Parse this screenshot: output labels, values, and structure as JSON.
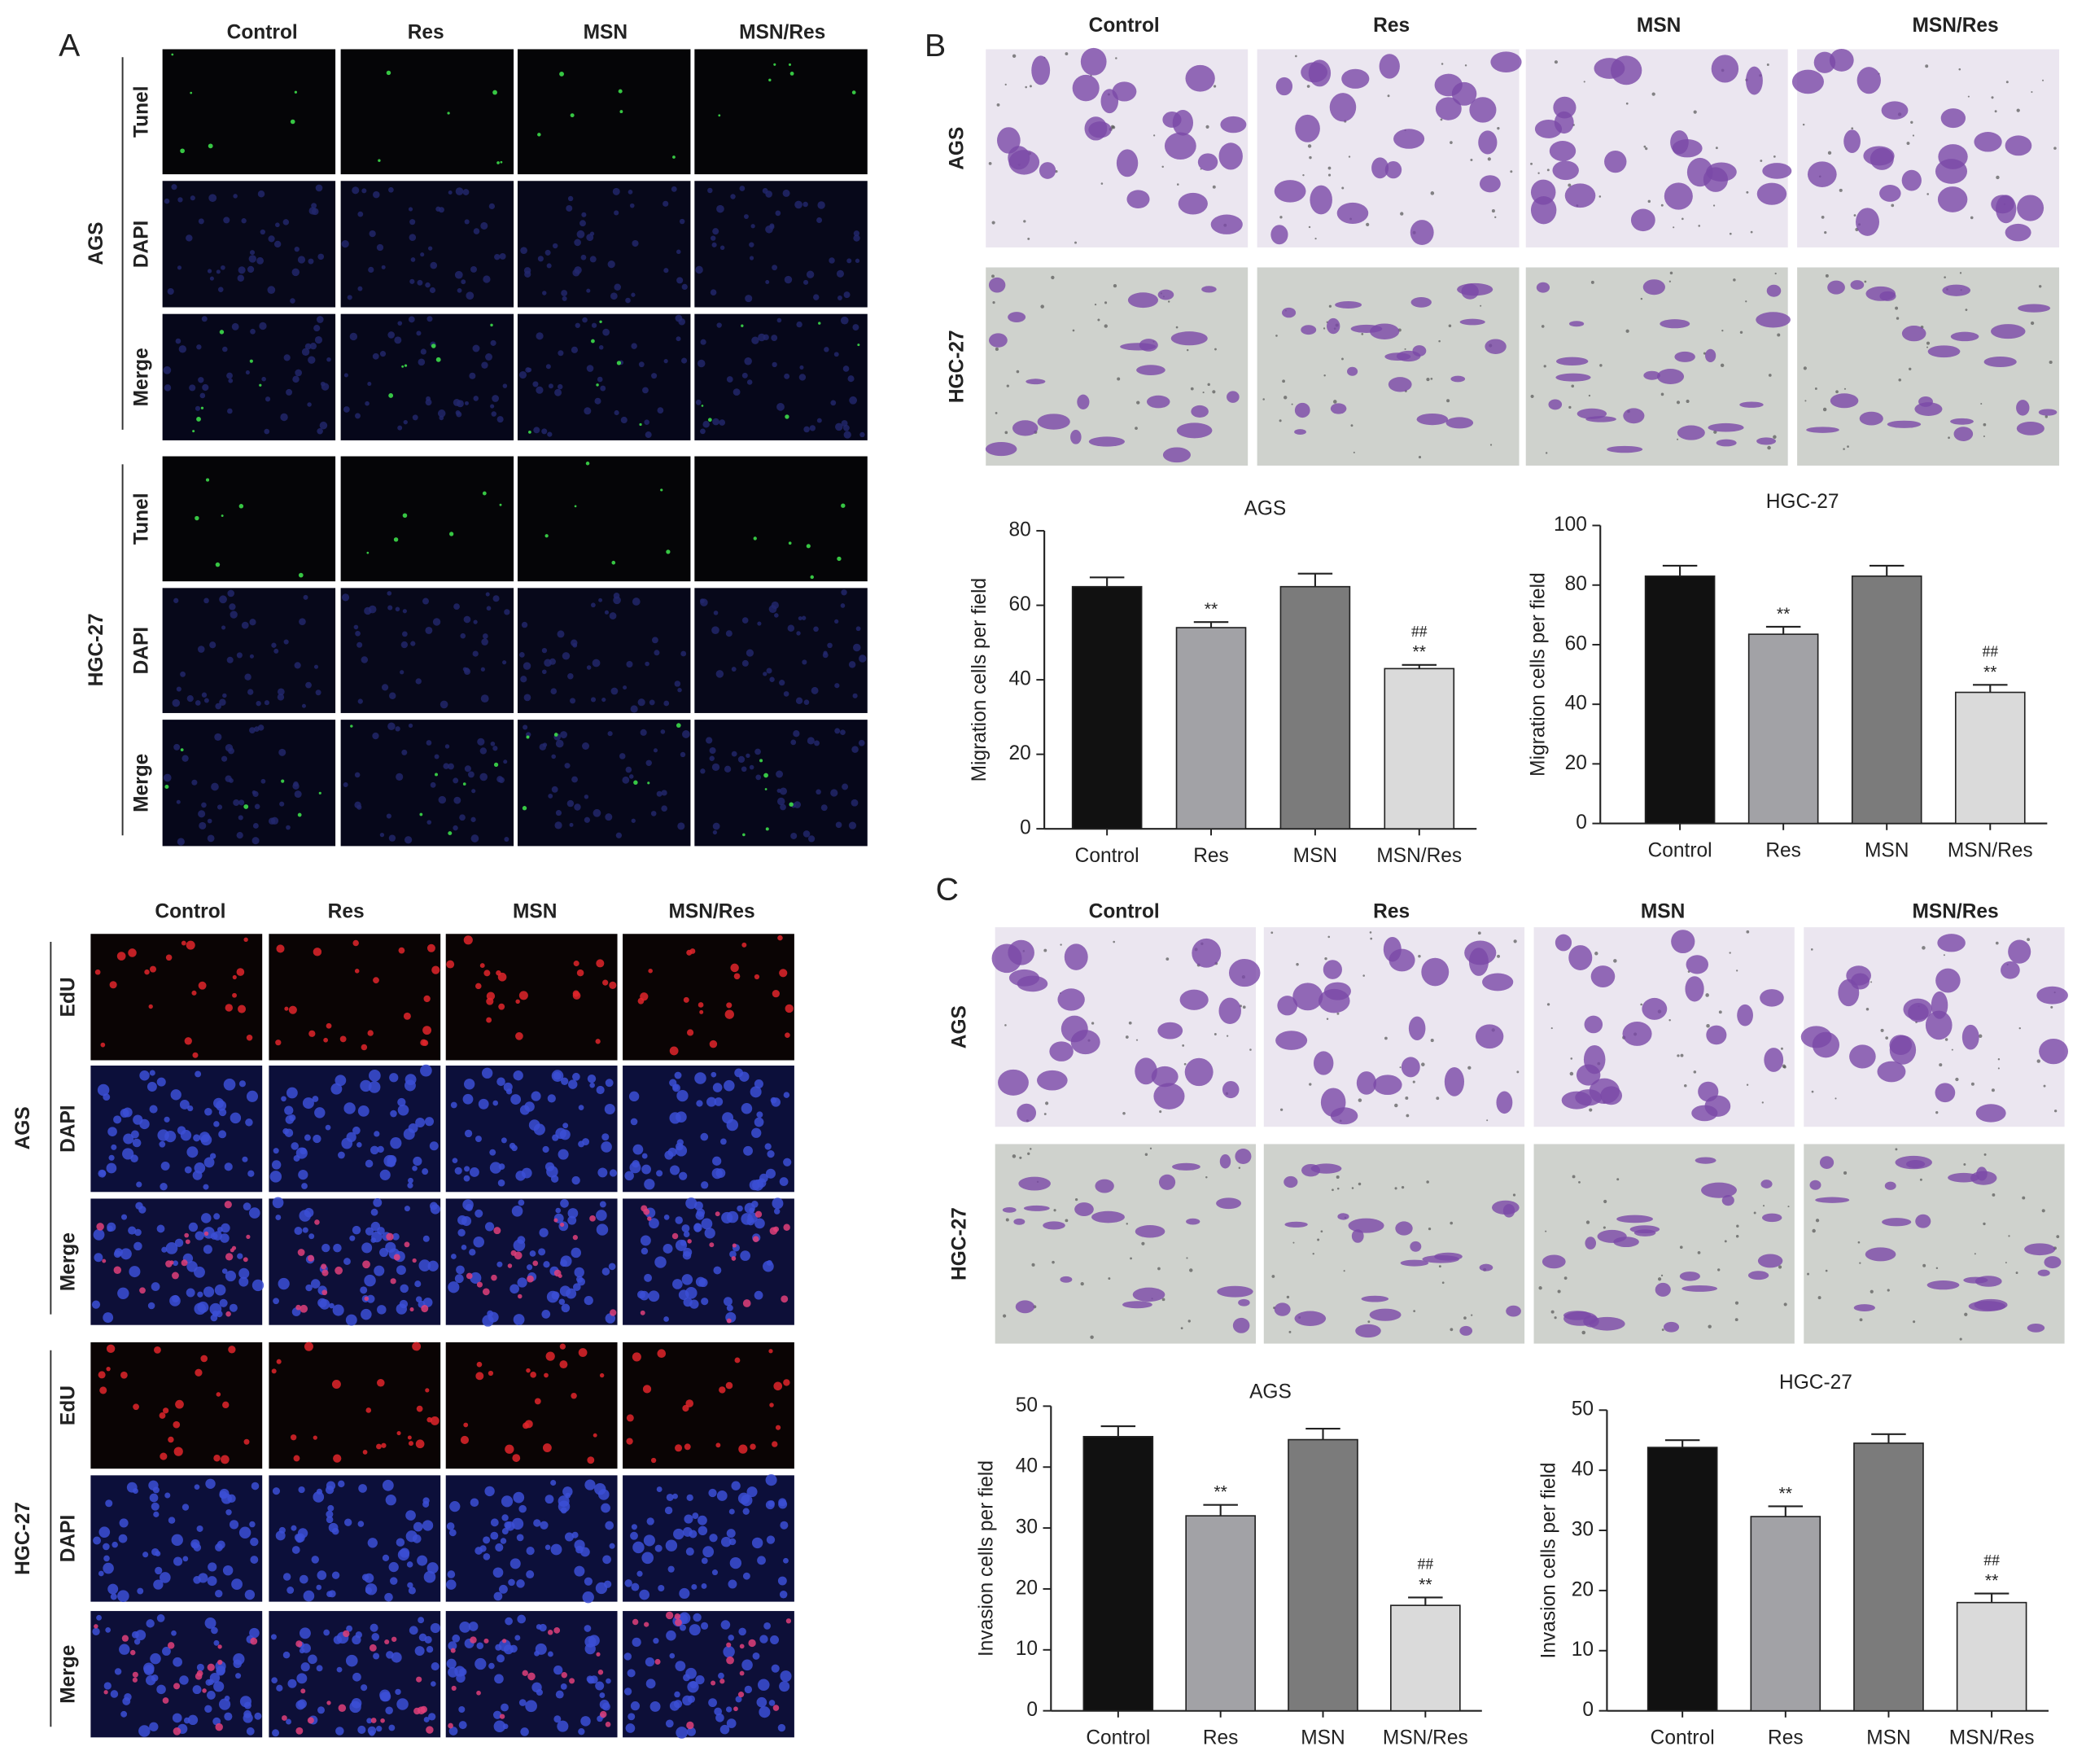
{
  "figure": {
    "panel_a": {
      "letter": "A",
      "columns": [
        "Control",
        "Res",
        "MSN",
        "MSN/Res"
      ],
      "cell_lines": [
        "AGS",
        "HGC-27"
      ],
      "stains": [
        "Tunel",
        "DAPI",
        "Merge"
      ]
    },
    "panel_edu": {
      "columns": [
        "Control",
        "Res",
        "MSN",
        "MSN/Res"
      ],
      "cell_lines": [
        "AGS",
        "HGC-27"
      ],
      "stains": [
        "EdU",
        "DAPI",
        "Merge"
      ]
    },
    "panel_b": {
      "letter": "B",
      "columns": [
        "Control",
        "Res",
        "MSN",
        "MSN/Res"
      ],
      "cell_lines": [
        "AGS",
        "HGC-27"
      ]
    },
    "panel_c": {
      "letter": "C",
      "columns": [
        "Control",
        "Res",
        "MSN",
        "MSN/Res"
      ],
      "cell_lines": [
        "AGS",
        "HGC-27"
      ]
    }
  },
  "chart_data": [
    {
      "type": "bar",
      "title": "AGS",
      "ylabel": "Migration cells per field",
      "categories": [
        "Control",
        "Res",
        "MSN",
        "MSN/Res"
      ],
      "values": [
        65,
        54,
        65,
        43
      ],
      "errors": [
        2.5,
        1.5,
        3.5,
        1
      ],
      "colors": [
        "#111111",
        "#a2a2a6",
        "#7b7b7b",
        "#dadada"
      ],
      "stars": [
        null,
        "**",
        null,
        "**"
      ],
      "hashes": [
        null,
        null,
        null,
        "##"
      ],
      "ylim": [
        0,
        80
      ],
      "yticks": [
        0,
        20,
        40,
        60,
        80
      ]
    },
    {
      "type": "bar",
      "title": "HGC-27",
      "ylabel": "Migration cells per field",
      "categories": [
        "Control",
        "Res",
        "MSN",
        "MSN/Res"
      ],
      "values": [
        83,
        63.5,
        83,
        44
      ],
      "errors": [
        3.5,
        2.5,
        3.5,
        2.5
      ],
      "colors": [
        "#111111",
        "#a2a2a6",
        "#7b7b7b",
        "#dadada"
      ],
      "stars": [
        null,
        "**",
        null,
        "**"
      ],
      "hashes": [
        null,
        null,
        null,
        "##"
      ],
      "ylim": [
        0,
        100
      ],
      "yticks": [
        0,
        20,
        40,
        60,
        80,
        100
      ]
    },
    {
      "type": "bar",
      "title": "AGS",
      "ylabel": "Invasion cells per field",
      "categories": [
        "Control",
        "Res",
        "MSN",
        "MSN/Res"
      ],
      "values": [
        45,
        32,
        44.5,
        17.3
      ],
      "errors": [
        1.7,
        1.8,
        1.8,
        1.3
      ],
      "colors": [
        "#111111",
        "#a2a2a6",
        "#7b7b7b",
        "#dadada"
      ],
      "stars": [
        null,
        "**",
        null,
        "**"
      ],
      "hashes": [
        null,
        null,
        null,
        "##"
      ],
      "ylim": [
        0,
        50
      ],
      "yticks": [
        0,
        10,
        20,
        30,
        40,
        50
      ]
    },
    {
      "type": "bar",
      "title": "HGC-27",
      "ylabel": "Invasion cells per field",
      "categories": [
        "Control",
        "Res",
        "MSN",
        "MSN/Res"
      ],
      "values": [
        43.8,
        32.3,
        44.5,
        18
      ],
      "errors": [
        1.2,
        1.7,
        1.5,
        1.5
      ],
      "colors": [
        "#111111",
        "#a2a2a6",
        "#7b7b7b",
        "#dadada"
      ],
      "stars": [
        null,
        "**",
        null,
        "**"
      ],
      "hashes": [
        null,
        null,
        null,
        "##"
      ],
      "ylim": [
        0,
        50
      ],
      "yticks": [
        0,
        10,
        20,
        30,
        40,
        50
      ]
    }
  ]
}
